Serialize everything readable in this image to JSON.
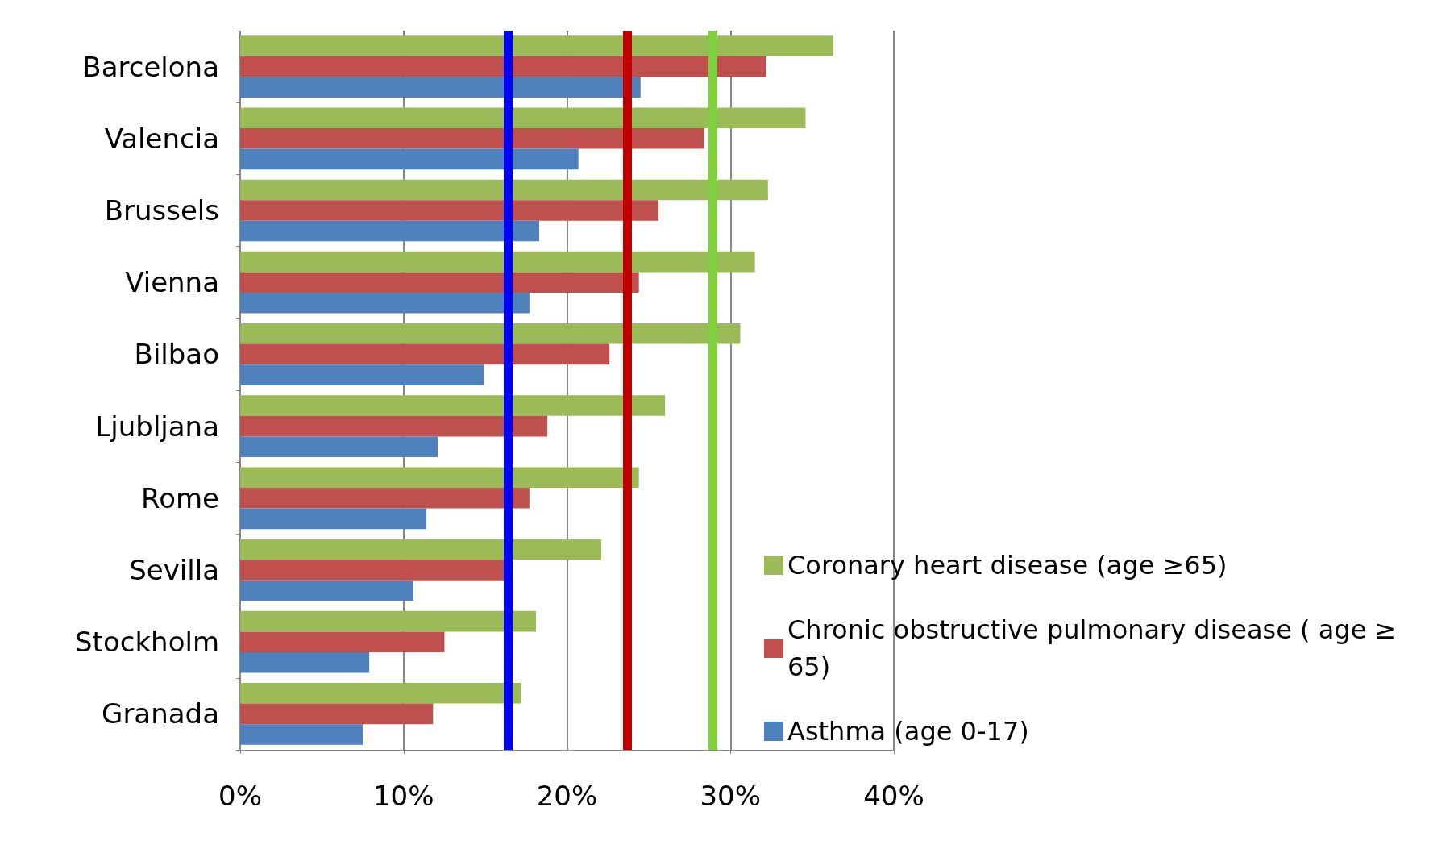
{
  "chart_data": {
    "type": "bar",
    "orientation": "horizontal",
    "categories": [
      "Barcelona",
      "Valencia",
      "Brussels",
      "Vienna",
      "Bilbao",
      "Ljubljana",
      "Rome",
      "Sevilla",
      "Stockholm",
      "Granada"
    ],
    "series": [
      {
        "name": "Coronary heart disease (age ≥65)",
        "color": "#9bbb59",
        "values": [
          36.3,
          34.6,
          32.3,
          31.5,
          30.6,
          26.0,
          24.4,
          22.1,
          18.1,
          17.2
        ]
      },
      {
        "name": "Chronic obstructive pulmonary disease ( age ≥65)",
        "color": "#c0504d",
        "values": [
          32.2,
          28.4,
          25.6,
          24.4,
          22.6,
          18.8,
          17.7,
          16.2,
          12.5,
          11.8
        ]
      },
      {
        "name": "Asthma (age 0-17)",
        "color": "#4f81bd",
        "values": [
          24.5,
          20.7,
          18.3,
          17.7,
          14.9,
          12.1,
          11.4,
          10.6,
          7.9,
          7.5
        ]
      }
    ],
    "xlim": [
      0,
      40
    ],
    "xticks": [
      {
        "value": 0,
        "label": "0%"
      },
      {
        "value": 10,
        "label": "10%"
      },
      {
        "value": 20,
        "label": "20%"
      },
      {
        "value": 30,
        "label": "30%"
      },
      {
        "value": 40,
        "label": "40%"
      }
    ],
    "ref_lines": [
      {
        "axis": "x",
        "value": 16.4,
        "color": "#0000ff"
      },
      {
        "axis": "x",
        "value": 23.7,
        "color": "#c00000"
      },
      {
        "axis": "x",
        "value": 28.9,
        "color": "#80d040"
      }
    ],
    "grid": "x",
    "legend": "bottom right"
  }
}
